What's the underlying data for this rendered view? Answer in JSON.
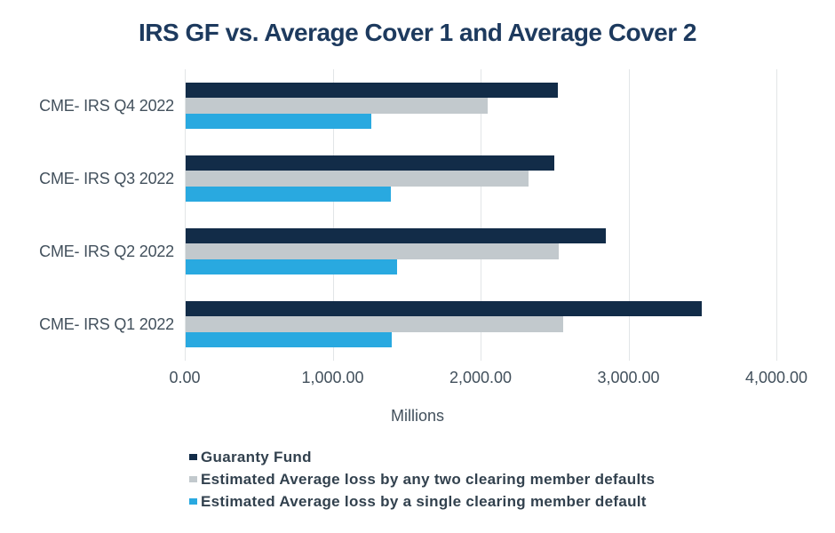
{
  "page": {
    "background": "#ffffff"
  },
  "chart_data": {
    "type": "bar",
    "orientation": "horizontal",
    "title": "IRS GF vs. Average Cover 1 and Average Cover 2",
    "categories": [
      "CME- IRS Q4 2022",
      "CME- IRS Q3 2022",
      "CME- IRS Q2 2022",
      "CME- IRS Q1 2022"
    ],
    "series": [
      {
        "name": "Guaranty Fund",
        "color": "#122c48",
        "values": [
          2515,
          2495,
          2840,
          3487
        ]
      },
      {
        "name": "Estimated Average loss by any two clearing member defaults",
        "color": "#c2c9cd",
        "values": [
          2045,
          2317,
          2525,
          2550
        ]
      },
      {
        "name": "Estimated Average loss by a single clearing member default",
        "color": "#29a9e0",
        "values": [
          1258,
          1385,
          1428,
          1395
        ]
      }
    ],
    "xlabel": "Millions",
    "ylabel": "",
    "xlim": [
      0,
      4000
    ],
    "xticks": [
      0,
      1000,
      2000,
      3000,
      4000
    ],
    "xtick_labels": [
      "0.00",
      "1,000.00",
      "2,000.00",
      "3,000.00",
      "4,000.00"
    ],
    "grid": "vertical",
    "legend_position": "bottom-left",
    "colors": {
      "title_text": "#1d3a5e",
      "axis_text": "#46535f",
      "legend_text": "#32414e",
      "gridline": "#e2e5e7"
    }
  }
}
